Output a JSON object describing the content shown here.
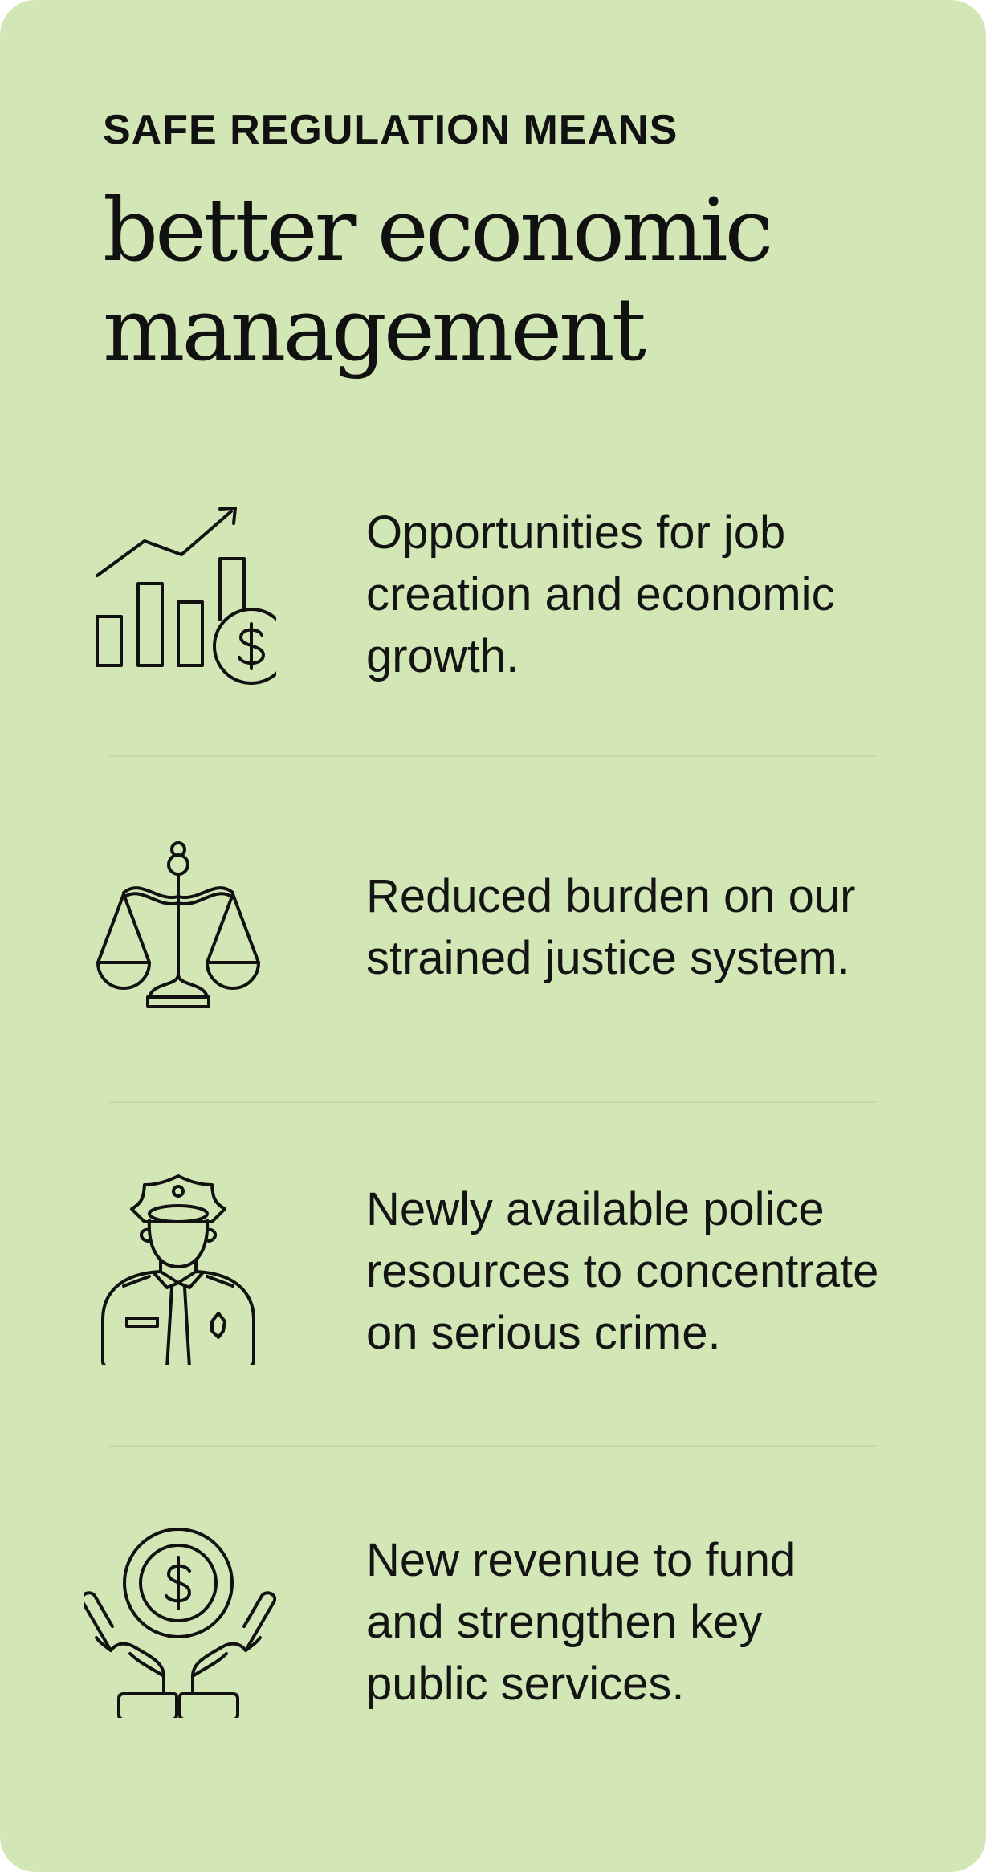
{
  "header": {
    "eyebrow": "SAFE REGULATION MEANS",
    "headline_lines": [
      "better economic",
      "management"
    ]
  },
  "items": [
    {
      "icon": "growth-chart-dollar-icon",
      "lines": [
        "Opportunities for job",
        "creation and economic",
        "growth."
      ]
    },
    {
      "icon": "justice-scales-icon",
      "lines": [
        "Reduced burden on our",
        "strained justice system."
      ]
    },
    {
      "icon": "police-officer-icon",
      "lines": [
        "Newly available police",
        "resources to concentrate",
        "on serious crime."
      ]
    },
    {
      "icon": "hands-coin-icon",
      "lines": [
        "New revenue to fund",
        "and strengthen key",
        "public services."
      ]
    }
  ],
  "colors": {
    "background": "#d3e6b6",
    "divider": "#c2dca0",
    "text": "#111111"
  }
}
